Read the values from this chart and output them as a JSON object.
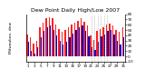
{
  "title": "Dew Point Daily High/Low 2007",
  "ylabel_left": "Milwaukee, dew",
  "bar_width": 0.38,
  "background_color": "#ffffff",
  "bar_color_high": "#ff2222",
  "bar_color_low": "#0000cc",
  "days": [
    1,
    2,
    3,
    4,
    5,
    6,
    7,
    8,
    9,
    10,
    11,
    12,
    13,
    14,
    15,
    16,
    17,
    18,
    19,
    20,
    21,
    22,
    23,
    24,
    25,
    26,
    27,
    28,
    29,
    30,
    31
  ],
  "highs": [
    42,
    36,
    25,
    30,
    55,
    64,
    72,
    74,
    72,
    60,
    52,
    46,
    50,
    55,
    60,
    64,
    68,
    72,
    65,
    58,
    40,
    32,
    48,
    52,
    55,
    60,
    62,
    58,
    50,
    46,
    55
  ],
  "lows": [
    28,
    10,
    5,
    18,
    36,
    48,
    55,
    58,
    50,
    40,
    30,
    22,
    28,
    36,
    44,
    50,
    55,
    58,
    48,
    38,
    18,
    12,
    28,
    38,
    42,
    48,
    50,
    42,
    30,
    22,
    36
  ],
  "ylim": [
    -10,
    80
  ],
  "yticks": [
    -10,
    0,
    10,
    20,
    30,
    40,
    50,
    60,
    70,
    80
  ],
  "ytick_labels": [
    "-10",
    "0",
    "10",
    "20",
    "30",
    "40",
    "50",
    "60",
    "70",
    "80"
  ],
  "dotted_lines": [
    21,
    22,
    23,
    24,
    25,
    26
  ],
  "xtick_positions": [
    1,
    3,
    5,
    7,
    9,
    11,
    13,
    15,
    17,
    19,
    21,
    23,
    25,
    27,
    29,
    31
  ],
  "title_fontsize": 4.5,
  "label_fontsize": 3.2,
  "tick_fontsize": 3.0
}
